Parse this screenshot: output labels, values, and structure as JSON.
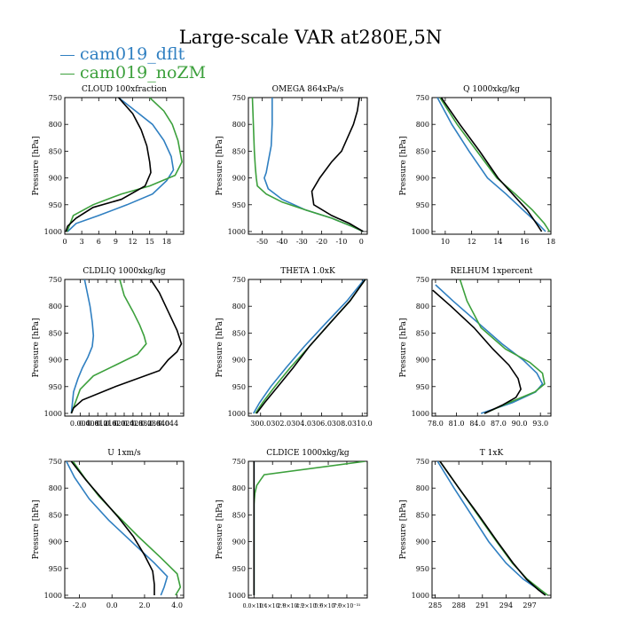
{
  "figure": {
    "title": "Large-scale VAR at280E,5N",
    "legend": [
      {
        "label": "cam019_dflt",
        "color": "#2f7fc1"
      },
      {
        "label": "cam019_noZM",
        "color": "#3ca03c"
      }
    ],
    "black_line_color": "#000000"
  },
  "chart_data": [
    {
      "type": "line",
      "title": "CLOUD  100xfraction",
      "ylabel": "Pressure [hPa]",
      "xlim": [
        0,
        21
      ],
      "ylim": [
        1005,
        750
      ],
      "xticks": [
        0,
        3,
        6,
        9,
        12,
        15,
        18
      ],
      "xtick_labels": [
        "0",
        "3",
        "6",
        "9",
        "12",
        "15",
        "18"
      ],
      "yticks": [
        750,
        800,
        850,
        900,
        950,
        1000
      ],
      "series": [
        {
          "name": "cam019_dflt",
          "color": "#2f7fc1",
          "x": [
            9.5,
            12.5,
            15.5,
            17.5,
            18.8,
            19.2,
            18,
            15.5,
            11,
            6,
            2,
            0.5
          ],
          "y": [
            750,
            775,
            800,
            830,
            860,
            885,
            905,
            930,
            950,
            970,
            985,
            1000
          ]
        },
        {
          "name": "cam019_noZM",
          "color": "#3ca03c",
          "x": [
            15,
            17.5,
            19,
            20,
            20.7,
            19.5,
            15,
            10,
            5,
            1.5,
            0.4
          ],
          "y": [
            750,
            775,
            800,
            830,
            870,
            895,
            915,
            930,
            950,
            970,
            1000
          ]
        },
        {
          "name": "",
          "color": "#000000",
          "x": [
            9.5,
            12,
            13.5,
            14.5,
            15,
            15.2,
            14.2,
            10,
            5,
            2,
            0.5,
            0.2
          ],
          "y": [
            750,
            780,
            810,
            840,
            870,
            890,
            915,
            940,
            955,
            975,
            990,
            1000
          ]
        }
      ]
    },
    {
      "type": "line",
      "title": "OMEGA  864xPa/s",
      "ylabel": "Pressure [hPa]",
      "xlim": [
        -57,
        3
      ],
      "ylim": [
        1005,
        750
      ],
      "xticks": [
        -50,
        -40,
        -30,
        -20,
        -10,
        0
      ],
      "xtick_labels": [
        "-50",
        "-40",
        "-30",
        "-20",
        "-10",
        "0"
      ],
      "yticks": [
        750,
        800,
        850,
        900,
        950,
        1000
      ],
      "series": [
        {
          "name": "cam019_dflt",
          "color": "#2f7fc1",
          "x": [
            -45,
            -45,
            -45.5,
            -47,
            -48,
            -49,
            -47,
            -40,
            -28,
            -15,
            -5,
            1
          ],
          "y": [
            750,
            800,
            840,
            870,
            890,
            900,
            920,
            940,
            960,
            975,
            990,
            1000
          ]
        },
        {
          "name": "cam019_noZM",
          "color": "#3ca03c",
          "x": [
            -55,
            -54.5,
            -54,
            -53.5,
            -53,
            -52.5,
            -48,
            -40,
            -28,
            -15,
            -5,
            1
          ],
          "y": [
            750,
            800,
            850,
            880,
            900,
            915,
            930,
            945,
            960,
            975,
            990,
            1000
          ]
        },
        {
          "name": "",
          "color": "#000000",
          "x": [
            -1,
            -2,
            -4,
            -7,
            -10,
            -15,
            -21,
            -25,
            -24,
            -15,
            -6,
            1
          ],
          "y": [
            750,
            775,
            800,
            825,
            850,
            870,
            900,
            925,
            950,
            970,
            985,
            1000
          ]
        }
      ]
    },
    {
      "type": "line",
      "title": "Q  1000xkg/kg",
      "ylabel": "Pressure [hPa]",
      "xlim": [
        9,
        18
      ],
      "ylim": [
        1005,
        750
      ],
      "xticks": [
        10,
        12,
        14,
        16,
        18
      ],
      "xtick_labels": [
        "10",
        "12",
        "14",
        "16",
        "18"
      ],
      "yticks": [
        750,
        800,
        850,
        900,
        950,
        1000
      ],
      "series": [
        {
          "name": "cam019_dflt",
          "color": "#2f7fc1",
          "x": [
            9.4,
            10.5,
            11.8,
            13.2,
            14.6,
            15.9,
            17,
            17.6
          ],
          "y": [
            750,
            800,
            850,
            900,
            930,
            960,
            985,
            1000
          ]
        },
        {
          "name": "cam019_noZM",
          "color": "#3ca03c",
          "x": [
            9.6,
            10.9,
            12.4,
            13.9,
            15.3,
            16.6,
            17.5,
            17.9
          ],
          "y": [
            750,
            800,
            850,
            900,
            930,
            960,
            985,
            1000
          ]
        },
        {
          "name": "",
          "color": "#000000",
          "x": [
            9.7,
            11.1,
            12.6,
            14,
            15.1,
            16.2,
            16.9,
            17.3
          ],
          "y": [
            750,
            800,
            850,
            900,
            930,
            960,
            985,
            1000
          ]
        }
      ]
    },
    {
      "type": "line",
      "title": "CLDLIQ  1000xkg/kg",
      "ylabel": "Pressure [hPa]",
      "xlim": [
        -0.003,
        0.051
      ],
      "ylim": [
        1005,
        750
      ],
      "xticks": [
        0.004,
        0.008,
        0.012,
        0.016,
        0.02,
        0.024,
        0.028,
        0.032,
        0.036,
        0.04,
        0.044
      ],
      "xtick_labels": [
        "0.004",
        "0.008",
        "0.012",
        "0.016",
        "0.020",
        "0.024",
        "0.028",
        "0.032",
        "0.036",
        "0.040",
        "0.044"
      ],
      "yticks": [
        750,
        800,
        850,
        900,
        950,
        1000
      ],
      "series": [
        {
          "name": "cam019_dflt",
          "color": "#2f7fc1",
          "x": [
            0.006,
            0.007,
            0.0085,
            0.0095,
            0.01,
            0.0095,
            0.0075,
            0.005,
            0.003,
            0.001,
            0.0
          ],
          "y": [
            750,
            770,
            800,
            830,
            855,
            875,
            895,
            915,
            935,
            960,
            1000
          ]
        },
        {
          "name": "cam019_noZM",
          "color": "#3ca03c",
          "x": [
            0.022,
            0.024,
            0.028,
            0.031,
            0.033,
            0.034,
            0.03,
            0.02,
            0.01,
            0.004,
            0.0
          ],
          "y": [
            750,
            780,
            810,
            835,
            855,
            870,
            890,
            910,
            930,
            955,
            1000
          ]
        },
        {
          "name": "",
          "color": "#000000",
          "x": [
            0.036,
            0.04,
            0.044,
            0.048,
            0.05,
            0.048,
            0.044,
            0.04,
            0.02,
            0.005,
            0.001,
            0.0
          ],
          "y": [
            750,
            775,
            810,
            845,
            870,
            885,
            900,
            920,
            950,
            975,
            990,
            1000
          ]
        }
      ]
    },
    {
      "type": "line",
      "title": "THETA  1.0xK",
      "ylabel": "Pressure [hPa]",
      "xlim": [
        298.8,
        310.5
      ],
      "ylim": [
        1005,
        750
      ],
      "xticks": [
        300,
        302,
        304,
        306,
        308,
        310
      ],
      "xtick_labels": [
        "300.0",
        "302.0",
        "304.0",
        "306.0",
        "308.0",
        "310.0"
      ],
      "yticks": [
        750,
        800,
        850,
        900,
        950,
        1000
      ],
      "series": [
        {
          "name": "cam019_dflt",
          "color": "#2f7fc1",
          "x": [
            310.2,
            308.5,
            306.5,
            304.3,
            302.5,
            301,
            299.9,
            299.3
          ],
          "y": [
            750,
            790,
            830,
            875,
            915,
            950,
            980,
            1000
          ]
        },
        {
          "name": "cam019_noZM",
          "color": "#3ca03c",
          "x": [
            310.3,
            308.8,
            306.9,
            304.8,
            302.9,
            301.4,
            300.2,
            299.5
          ],
          "y": [
            750,
            790,
            830,
            875,
            915,
            950,
            980,
            1000
          ]
        },
        {
          "name": "",
          "color": "#000000",
          "x": [
            310.3,
            308.8,
            306.9,
            304.8,
            303.2,
            301.7,
            300.4,
            299.6
          ],
          "y": [
            750,
            790,
            830,
            875,
            915,
            950,
            980,
            1000
          ]
        }
      ]
    },
    {
      "type": "line",
      "title": "RELHUM  1xpercent",
      "ylabel": "Pressure [hPa]",
      "xlim": [
        77.5,
        94.5
      ],
      "ylim": [
        1005,
        750
      ],
      "xticks": [
        78,
        81,
        84,
        87,
        90,
        93
      ],
      "xtick_labels": [
        "78.0",
        "81.0",
        "84.0",
        "87.0",
        "90.0",
        "93.0"
      ],
      "yticks": [
        750,
        800,
        850,
        900,
        950,
        1000
      ],
      "series": [
        {
          "name": "cam019_dflt",
          "color": "#2f7fc1",
          "x": [
            78,
            80.5,
            84,
            87.5,
            90.5,
            92.5,
            93.3,
            92.3,
            89,
            84.5
          ],
          "y": [
            760,
            790,
            830,
            870,
            900,
            925,
            945,
            960,
            980,
            1000
          ]
        },
        {
          "name": "cam019_noZM",
          "color": "#3ca03c",
          "x": [
            81.5,
            82.5,
            84.5,
            88,
            91.5,
            93.3,
            93.6,
            92.2,
            88.5,
            85
          ],
          "y": [
            750,
            790,
            840,
            880,
            905,
            925,
            945,
            960,
            980,
            1000
          ]
        },
        {
          "name": "",
          "color": "#000000",
          "x": [
            77.6,
            80.2,
            83.5,
            86.2,
            88.5,
            89.8,
            90.2,
            89.5,
            87.5,
            85
          ],
          "y": [
            770,
            800,
            840,
            880,
            910,
            935,
            955,
            970,
            985,
            1000
          ]
        }
      ]
    },
    {
      "type": "line",
      "title": "U  1xm/s",
      "ylabel": "Pressure [hPa]",
      "xlim": [
        -2.9,
        4.4
      ],
      "ylim": [
        1005,
        750
      ],
      "xticks": [
        -2,
        0,
        2,
        4
      ],
      "xtick_labels": [
        "-2.0",
        "0.0",
        "2.0",
        "4.0"
      ],
      "yticks": [
        750,
        800,
        850,
        900,
        950,
        1000
      ],
      "series": [
        {
          "name": "cam019_dflt",
          "color": "#2f7fc1",
          "x": [
            -2.8,
            -2.3,
            -1.4,
            -0.2,
            1.2,
            2.6,
            3.4,
            3.2,
            3.0
          ],
          "y": [
            750,
            780,
            820,
            860,
            900,
            940,
            965,
            985,
            1000
          ]
        },
        {
          "name": "cam019_noZM",
          "color": "#3ca03c",
          "x": [
            -2.4,
            -1.7,
            -0.8,
            0.3,
            1.6,
            3.0,
            4.0,
            4.2,
            3.9
          ],
          "y": [
            750,
            780,
            815,
            850,
            890,
            930,
            960,
            985,
            1000
          ]
        },
        {
          "name": "",
          "color": "#000000",
          "x": [
            -2.5,
            -1.6,
            -0.6,
            0.4,
            1.3,
            2.0,
            2.5,
            2.6,
            2.6
          ],
          "y": [
            750,
            785,
            820,
            855,
            890,
            925,
            955,
            980,
            1000
          ]
        }
      ]
    },
    {
      "type": "line",
      "title": "CLDICE  1000xkg/kg",
      "ylabel": "Pressure [hPa]",
      "xlim": [
        -0.3,
        6.1
      ],
      "ylim": [
        1005,
        750
      ],
      "xticks": [
        0,
        1,
        2,
        3,
        4,
        5
      ],
      "xtick_labels": [
        "0.0×10⁰",
        "1.4×10⁻³¹",
        "2.8×10⁻³¹",
        "4.2×10⁻³¹",
        "5.6×10⁻³¹",
        "7.0×10⁻³¹"
      ],
      "yticks": [
        750,
        800,
        850,
        900,
        950,
        1000
      ],
      "series": [
        {
          "name": "cam019_dflt",
          "color": "#2f7fc1",
          "x": [
            0,
            0,
            0
          ],
          "y": [
            750,
            900,
            1000
          ]
        },
        {
          "name": "cam019_noZM",
          "color": "#3ca03c",
          "x": [
            6.0,
            0.55,
            0.35,
            0.15,
            0.05,
            0,
            0
          ],
          "y": [
            750,
            775,
            785,
            795,
            810,
            830,
            1000
          ]
        },
        {
          "name": "",
          "color": "#000000",
          "x": [
            0,
            0,
            0
          ],
          "y": [
            750,
            900,
            1000
          ]
        }
      ]
    },
    {
      "type": "line",
      "title": "T  1xK",
      "ylabel": "Pressure [hPa]",
      "xlim": [
        284.6,
        299.7
      ],
      "ylim": [
        1005,
        750
      ],
      "xticks": [
        285,
        288,
        291,
        294,
        297
      ],
      "xtick_labels": [
        "285",
        "288",
        "291",
        "294",
        "297"
      ],
      "yticks": [
        750,
        800,
        850,
        900,
        950,
        1000
      ],
      "series": [
        {
          "name": "cam019_dflt",
          "color": "#2f7fc1",
          "x": [
            285.3,
            287.4,
            289.6,
            291.8,
            294,
            296.2,
            298.2,
            299
          ],
          "y": [
            750,
            800,
            850,
            900,
            940,
            970,
            990,
            1000
          ]
        },
        {
          "name": "cam019_noZM",
          "color": "#3ca03c",
          "x": [
            285.6,
            288,
            290.4,
            292.8,
            294.8,
            296.7,
            298.4,
            299.3
          ],
          "y": [
            750,
            800,
            850,
            900,
            940,
            970,
            990,
            1000
          ]
        },
        {
          "name": "",
          "color": "#000000",
          "x": [
            285.6,
            288,
            290.5,
            292.9,
            294.9,
            296.6,
            298.1,
            299
          ],
          "y": [
            750,
            800,
            850,
            900,
            940,
            970,
            990,
            1000
          ]
        }
      ]
    }
  ]
}
